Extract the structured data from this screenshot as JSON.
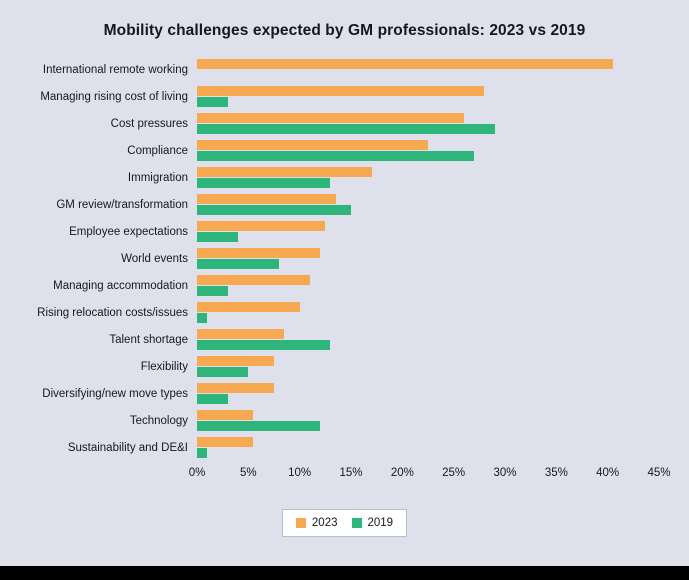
{
  "title": "Mobility challenges expected by GM professionals: 2023 vs 2019",
  "colors": {
    "series_2023": "#F6A950",
    "series_2019": "#2EB57C",
    "background": "#DEE1EC",
    "text": "#15181F"
  },
  "legend": [
    {
      "label": "2023",
      "color": "#F6A950"
    },
    {
      "label": "2019",
      "color": "#2EB57C"
    }
  ],
  "x_axis": {
    "ticks": [
      "0%",
      "5%",
      "10%",
      "15%",
      "20%",
      "25%",
      "30%",
      "35%",
      "40%",
      "45%"
    ],
    "tick_values": [
      0,
      5,
      10,
      15,
      20,
      25,
      30,
      35,
      40,
      45
    ],
    "max": 45
  },
  "chart_data": {
    "type": "bar",
    "orientation": "horizontal",
    "title": "Mobility challenges expected by GM professionals: 2023 vs 2019",
    "xlabel": "",
    "ylabel": "",
    "xlim": [
      0,
      45
    ],
    "grid": false,
    "legend_position": "bottom",
    "categories": [
      "International remote working",
      "Managing rising cost of living",
      "Cost pressures",
      "Compliance",
      "Immigration",
      "GM review/transformation",
      "Employee expectations",
      "World events",
      "Managing accommodation",
      "Rising relocation costs/issues",
      "Talent shortage",
      "Flexibility",
      "Diversifying/new move types",
      "Technology",
      "Sustainability and DE&I"
    ],
    "series": [
      {
        "name": "2023",
        "color": "#F6A950",
        "values": [
          40.5,
          28,
          26,
          22.5,
          17,
          13.5,
          12.5,
          12,
          11,
          10,
          8.5,
          7.5,
          7.5,
          5.5,
          5.5
        ]
      },
      {
        "name": "2019",
        "color": "#2EB57C",
        "values": [
          0,
          3,
          29,
          27,
          13,
          15,
          4,
          8,
          3,
          1,
          13,
          5,
          3,
          12,
          1
        ]
      }
    ]
  }
}
